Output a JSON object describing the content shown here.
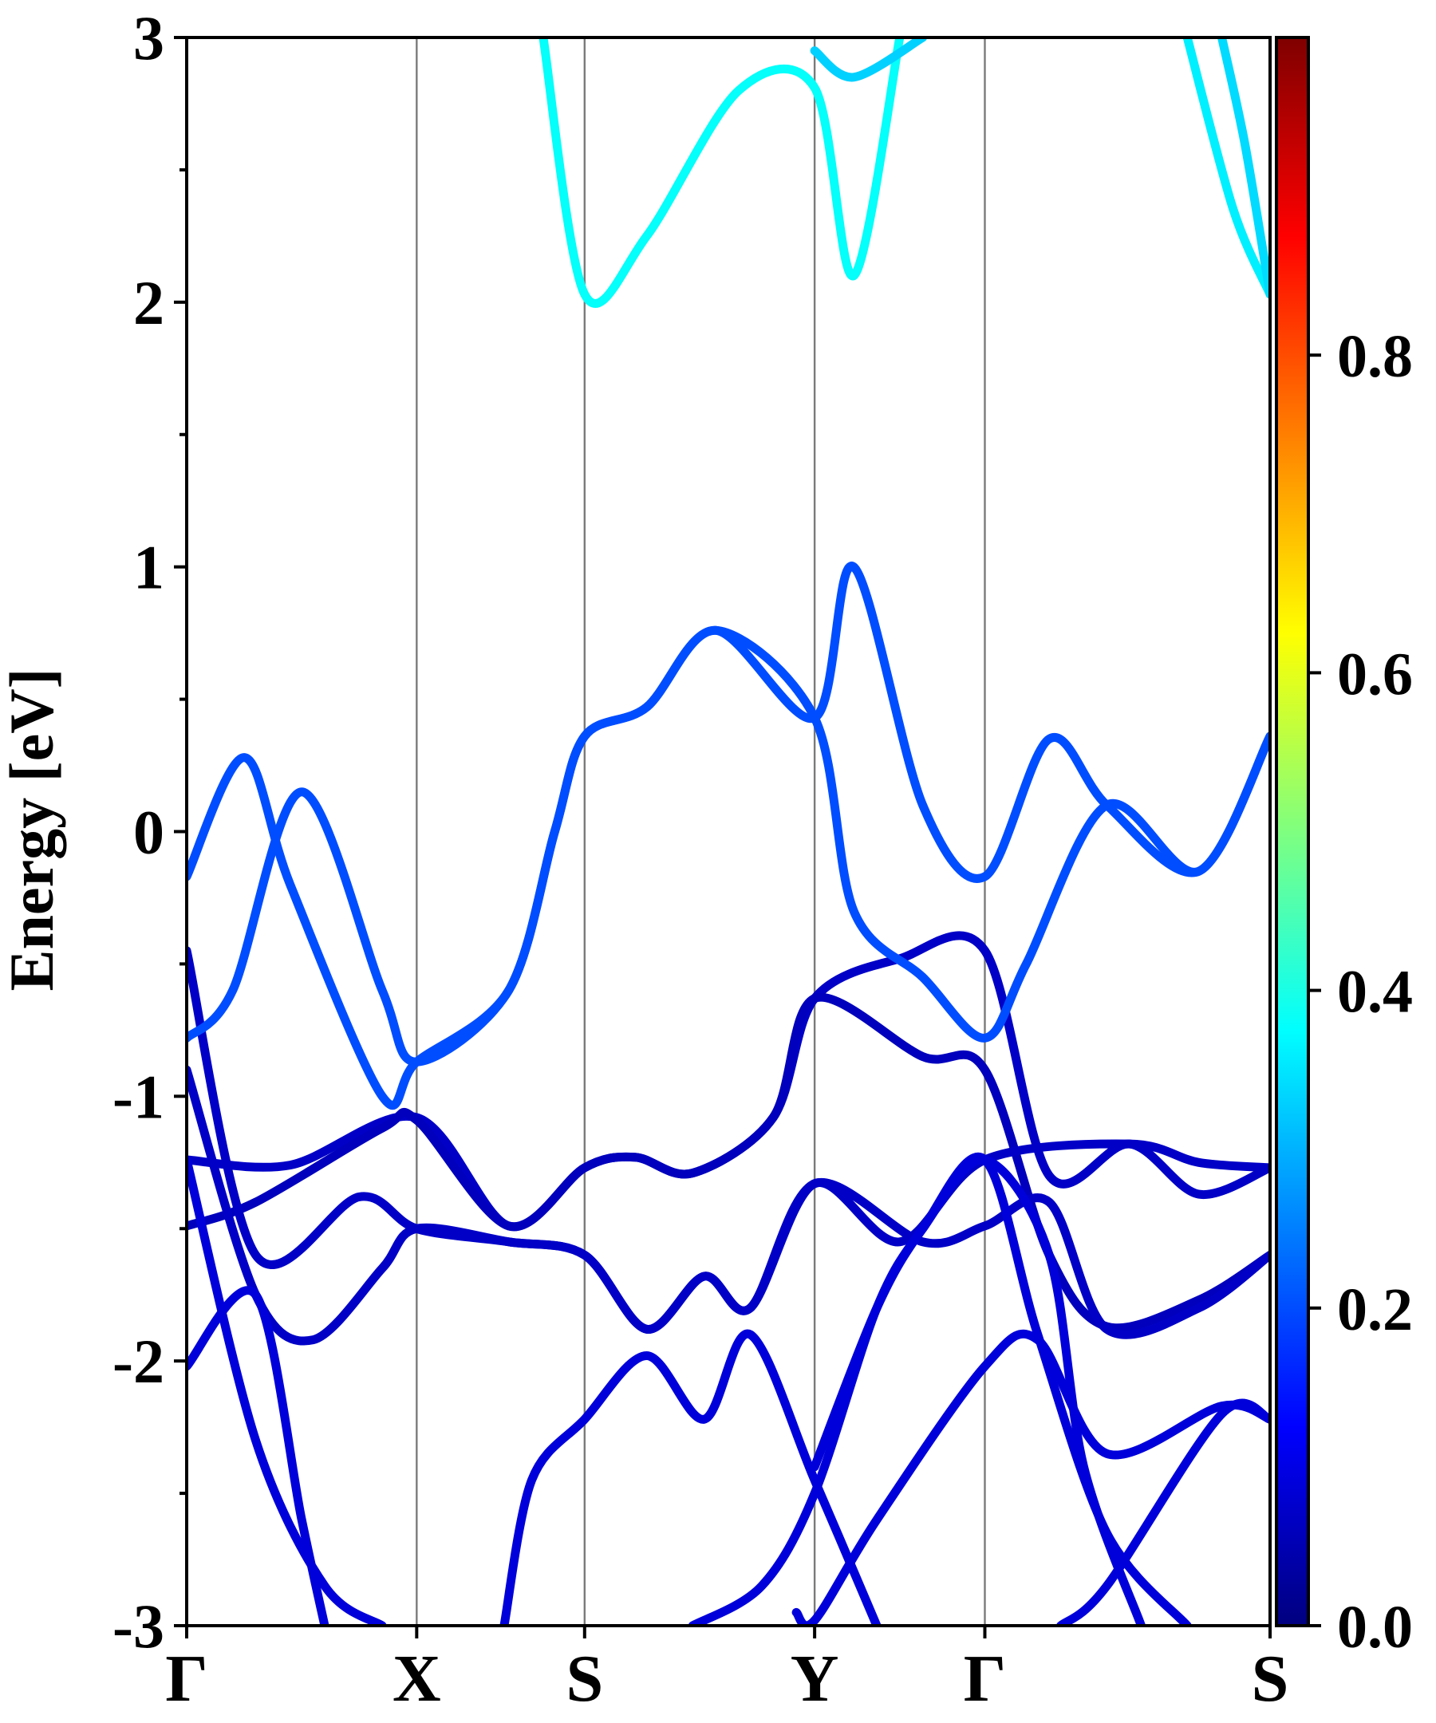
{
  "chart_data": {
    "type": "line",
    "title": "",
    "ylabel": "Energy [eV]",
    "ylim": [
      -3,
      3
    ],
    "y_ticks": [
      "3",
      "2",
      "1",
      "0",
      "-1",
      "-2",
      "-3"
    ],
    "x_range": [
      0,
      4.71
    ],
    "high_symmetry_points": [
      {
        "label": "Γ",
        "x": 0.0
      },
      {
        "label": "X",
        "x": 1.0
      },
      {
        "label": "S",
        "x": 1.73
      },
      {
        "label": "Y",
        "x": 2.73
      },
      {
        "label": "Γ",
        "x": 3.47
      },
      {
        "label": "S",
        "x": 4.71
      }
    ],
    "colorbar": {
      "colormap": "jet",
      "range": [
        0.0,
        1.0
      ],
      "tick_labels": [
        "0.0",
        "0.2",
        "0.4",
        "0.6",
        "0.8"
      ],
      "tick_values": [
        0.0,
        0.2,
        0.4,
        0.6,
        0.8
      ],
      "stops": [
        "#00007f",
        "#0000ff",
        "#007fff",
        "#00ffff",
        "#7fff7f",
        "#ffff00",
        "#ff7f00",
        "#ff0000",
        "#7f0000"
      ]
    },
    "series": [
      {
        "name": "band-1",
        "weight": 0.07,
        "points": [
          [
            0,
            -1.24
          ],
          [
            0.45,
            -1.26
          ],
          [
            1.0,
            -1.08
          ],
          [
            1.4,
            -1.49
          ],
          [
            1.73,
            -1.27
          ],
          [
            1.95,
            -1.23
          ],
          [
            2.2,
            -1.29
          ],
          [
            2.55,
            -1.08
          ],
          [
            2.73,
            -0.63
          ],
          [
            3.1,
            -0.48
          ],
          [
            3.47,
            -0.45
          ],
          [
            3.75,
            -1.3
          ],
          [
            4.1,
            -1.18
          ],
          [
            4.4,
            -1.37
          ],
          [
            4.71,
            -1.27
          ]
        ]
      },
      {
        "name": "band-2",
        "weight": 0.06,
        "points": [
          [
            0,
            -1.49
          ],
          [
            0.3,
            -1.4
          ],
          [
            0.85,
            -1.12
          ],
          [
            1.0,
            -1.09
          ],
          [
            1.4,
            -1.49
          ],
          [
            1.73,
            -1.27
          ],
          [
            1.95,
            -1.23
          ],
          [
            2.2,
            -1.29
          ],
          [
            2.55,
            -1.08
          ],
          [
            2.73,
            -0.63
          ],
          [
            3.2,
            -0.85
          ],
          [
            3.47,
            -0.9
          ],
          [
            3.75,
            -1.6
          ],
          [
            4.0,
            -1.87
          ],
          [
            4.4,
            -1.77
          ],
          [
            4.71,
            -1.6
          ]
        ]
      },
      {
        "name": "band-3",
        "weight": 0.07,
        "points": [
          [
            0,
            -0.45
          ],
          [
            0.3,
            -1.6
          ],
          [
            0.75,
            -1.38
          ],
          [
            1.0,
            -1.5
          ],
          [
            1.4,
            -1.55
          ],
          [
            1.73,
            -1.6
          ],
          [
            2.0,
            -1.88
          ],
          [
            2.25,
            -1.68
          ],
          [
            2.45,
            -1.8
          ],
          [
            2.73,
            -1.33
          ],
          [
            3.2,
            -1.55
          ],
          [
            3.47,
            -1.49
          ],
          [
            3.75,
            -1.4
          ],
          [
            4.0,
            -1.88
          ],
          [
            4.4,
            -1.8
          ],
          [
            4.71,
            -1.6
          ]
        ]
      },
      {
        "name": "band-4",
        "weight": 0.07,
        "points": [
          [
            0,
            -0.9
          ],
          [
            0.3,
            -1.75
          ],
          [
            0.55,
            -1.92
          ],
          [
            0.85,
            -1.65
          ],
          [
            1.0,
            -1.5
          ],
          [
            1.4,
            -1.55
          ],
          [
            1.73,
            -1.6
          ],
          [
            2.0,
            -1.88
          ],
          [
            2.25,
            -1.68
          ],
          [
            2.45,
            -1.8
          ],
          [
            2.73,
            -1.33
          ],
          [
            3.1,
            -1.55
          ],
          [
            3.47,
            -1.24
          ],
          [
            4.1,
            -1.18
          ],
          [
            4.4,
            -1.25
          ],
          [
            4.71,
            -1.27
          ]
        ]
      },
      {
        "name": "band-5",
        "weight": 0.09,
        "points": [
          [
            0,
            -2.02
          ],
          [
            0.3,
            -1.75
          ],
          [
            0.5,
            -2.6
          ],
          [
            0.6,
            -3.0
          ]
        ]
      },
      {
        "name": "band-6",
        "weight": 0.09,
        "points": [
          [
            0,
            -1.24
          ],
          [
            0.3,
            -2.3
          ],
          [
            0.6,
            -2.85
          ],
          [
            0.85,
            -3.0
          ]
        ]
      },
      {
        "name": "band-7",
        "weight": 0.09,
        "points": [
          [
            1.38,
            -3.0
          ],
          [
            1.5,
            -2.45
          ],
          [
            1.73,
            -2.22
          ],
          [
            2.0,
            -1.98
          ],
          [
            2.25,
            -2.22
          ],
          [
            2.45,
            -1.9
          ],
          [
            2.73,
            -2.45
          ],
          [
            3.0,
            -3.0
          ]
        ]
      },
      {
        "name": "band-8",
        "weight": 0.09,
        "points": [
          [
            2.2,
            -3.0
          ],
          [
            2.5,
            -2.85
          ],
          [
            2.73,
            -2.5
          ],
          [
            3.0,
            -1.8
          ],
          [
            3.2,
            -1.5
          ],
          [
            3.47,
            -1.24
          ],
          [
            3.7,
            -1.9
          ],
          [
            4.0,
            -2.65
          ],
          [
            4.35,
            -3.0
          ]
        ]
      },
      {
        "name": "band-9",
        "weight": 0.09,
        "points": [
          [
            2.73,
            -2.4
          ],
          [
            3.0,
            -1.8
          ],
          [
            3.2,
            -1.5
          ],
          [
            3.47,
            -1.24
          ],
          [
            3.75,
            -1.6
          ],
          [
            3.9,
            -2.4
          ],
          [
            4.15,
            -3.0
          ]
        ]
      },
      {
        "name": "band-10",
        "weight": 0.09,
        "points": [
          [
            2.65,
            -2.95
          ],
          [
            2.73,
            -2.98
          ],
          [
            3.0,
            -2.6
          ],
          [
            3.47,
            -2.02
          ],
          [
            3.7,
            -1.92
          ],
          [
            4.0,
            -2.35
          ],
          [
            4.5,
            -2.17
          ],
          [
            4.71,
            -2.22
          ]
        ]
      },
      {
        "name": "band-11",
        "weight": 0.09,
        "points": [
          [
            3.8,
            -3.0
          ],
          [
            4.0,
            -2.85
          ],
          [
            4.5,
            -2.2
          ],
          [
            4.71,
            -2.22
          ]
        ]
      },
      {
        "name": "band-12",
        "weight": 0.2,
        "points": [
          [
            0,
            -0.17
          ],
          [
            0.25,
            0.28
          ],
          [
            0.45,
            -0.2
          ],
          [
            0.85,
            -1.0
          ],
          [
            1.0,
            -0.87
          ],
          [
            1.4,
            -0.6
          ],
          [
            1.6,
            0.0
          ],
          [
            1.73,
            0.36
          ],
          [
            2.0,
            0.47
          ],
          [
            2.3,
            0.76
          ],
          [
            2.73,
            0.43
          ],
          [
            2.9,
            1.0
          ],
          [
            3.2,
            0.1
          ],
          [
            3.47,
            -0.17
          ],
          [
            3.75,
            0.35
          ],
          [
            4.0,
            0.1
          ],
          [
            4.4,
            -0.15
          ],
          [
            4.71,
            0.36
          ]
        ]
      },
      {
        "name": "band-13",
        "weight": 0.2,
        "points": [
          [
            0,
            -0.78
          ],
          [
            0.2,
            -0.6
          ],
          [
            0.5,
            0.15
          ],
          [
            0.85,
            -0.6
          ],
          [
            1.0,
            -0.87
          ],
          [
            1.4,
            -0.6
          ],
          [
            1.6,
            0.0
          ],
          [
            1.73,
            0.36
          ],
          [
            2.0,
            0.47
          ],
          [
            2.3,
            0.76
          ],
          [
            2.73,
            0.43
          ],
          [
            2.9,
            -0.3
          ],
          [
            3.2,
            -0.55
          ],
          [
            3.47,
            -0.78
          ],
          [
            3.65,
            -0.5
          ],
          [
            4.0,
            0.1
          ],
          [
            4.4,
            -0.15
          ],
          [
            4.71,
            0.36
          ]
        ]
      },
      {
        "name": "band-14",
        "weight": 0.38,
        "points": [
          [
            1.55,
            3.0
          ],
          [
            1.73,
            2.03
          ],
          [
            2.0,
            2.25
          ],
          [
            2.4,
            2.8
          ],
          [
            2.73,
            2.81
          ],
          [
            2.9,
            2.1
          ],
          [
            3.1,
            3.0
          ]
        ]
      },
      {
        "name": "band-15",
        "weight": 0.33,
        "points": [
          [
            2.73,
            2.95
          ],
          [
            2.9,
            2.85
          ],
          [
            3.2,
            3.0
          ]
        ]
      },
      {
        "name": "band-16",
        "weight": 0.36,
        "points": [
          [
            4.35,
            3.0
          ],
          [
            4.55,
            2.35
          ],
          [
            4.71,
            2.03
          ]
        ]
      },
      {
        "name": "band-17",
        "weight": 0.34,
        "points": [
          [
            4.5,
            3.0
          ],
          [
            4.6,
            2.6
          ],
          [
            4.71,
            2.03
          ]
        ]
      }
    ]
  }
}
